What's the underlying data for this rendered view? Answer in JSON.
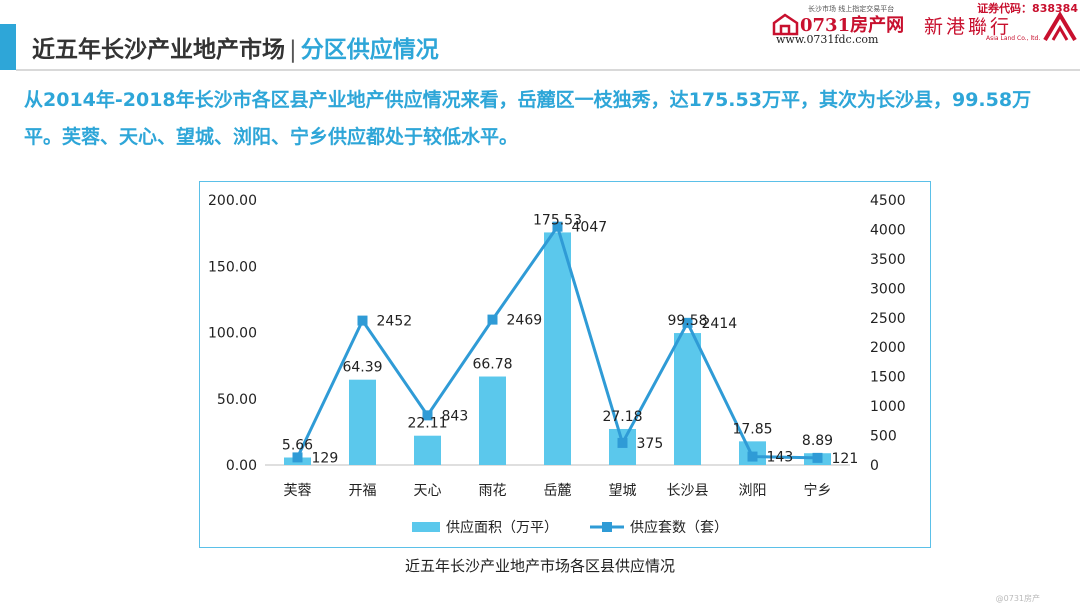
{
  "header": {
    "title": "近五年长沙产业地产市场",
    "separator": "|",
    "subtitle": "分区供应情况"
  },
  "logos": {
    "platform_tagline": "长沙市场 线上指定交易平台",
    "platform_name": "0731房产网",
    "platform_url": "www.0731fdc.com",
    "stock_code": "证券代码：838384",
    "company_cn": "新港聯行",
    "company_en": "Asia Land Co., ltd."
  },
  "description": "从2014年-2018年长沙市各区县产业地产供应情况来看，岳麓区一枝独秀，达175.53万平，其次为长沙县，99.58万平。芙蓉、天心、望城、浏阳、宁乡供应都处于较低水平。",
  "caption": "近五年长沙产业地产市场各区县供应情况",
  "watermark": "@0731房产",
  "chart_data": {
    "type": "bar+line",
    "categories": [
      "芙蓉",
      "开福",
      "天心",
      "雨花",
      "岳麓",
      "望城",
      "长沙县",
      "浏阳",
      "宁乡"
    ],
    "series": [
      {
        "name": "供应面积（万平）",
        "type": "bar",
        "axis": "left",
        "values": [
          5.66,
          64.39,
          22.11,
          66.78,
          175.53,
          27.18,
          99.58,
          17.85,
          8.89
        ],
        "labels": [
          "5.66",
          "64.39",
          "22.11",
          "66.78",
          "175.53",
          "27.18",
          "99.58",
          "17.85",
          "8.89"
        ],
        "color": "#5bc8ec"
      },
      {
        "name": "供应套数（套）",
        "type": "line",
        "axis": "right",
        "values": [
          129,
          2452,
          843,
          2469,
          4047,
          375,
          2414,
          143,
          121
        ],
        "labels": [
          "129",
          "2452",
          "843",
          "2469",
          "4047",
          "375",
          "2414",
          "143",
          "121"
        ],
        "color": "#2f9bd6"
      }
    ],
    "left_axis": {
      "min": 0,
      "max": 200,
      "ticks": [
        "0.00",
        "50.00",
        "100.00",
        "150.00",
        "200.00"
      ]
    },
    "right_axis": {
      "min": 0,
      "max": 4500,
      "ticks": [
        "0",
        "500",
        "1000",
        "1500",
        "2000",
        "2500",
        "3000",
        "3500",
        "4000",
        "4500"
      ]
    },
    "legend_position": "bottom"
  }
}
